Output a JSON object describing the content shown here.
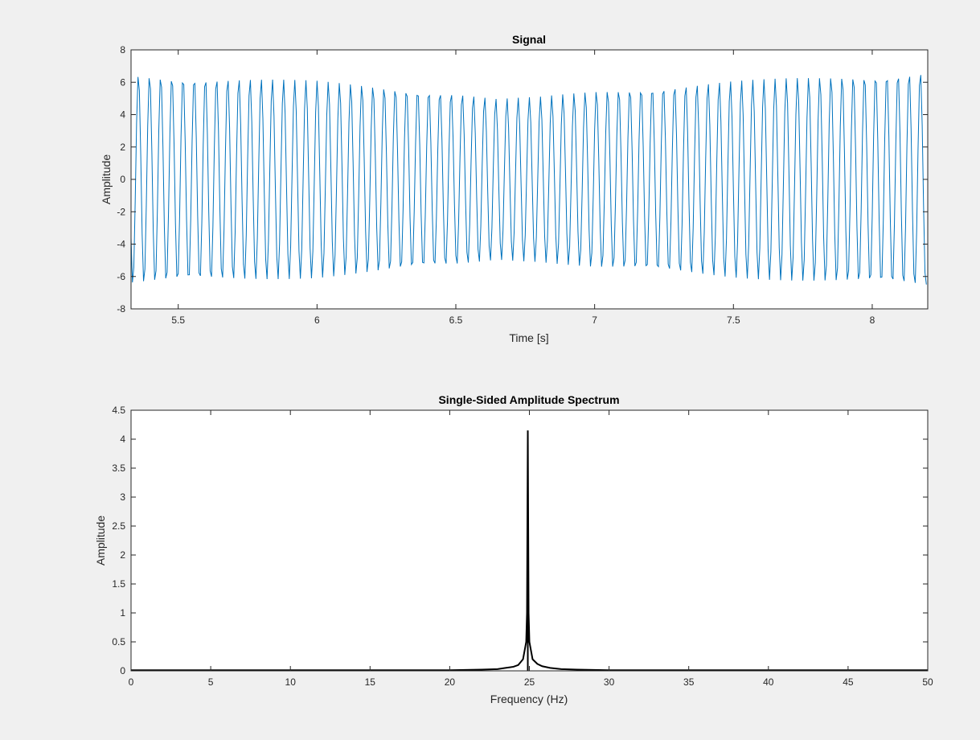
{
  "colors": {
    "figure_background": "#f0f0f0",
    "axes_background": "#ffffff",
    "axes_edge": "#262626",
    "signal_line": "#0072bd",
    "spectrum_line": "#000000"
  },
  "chart_data": [
    {
      "type": "line",
      "title": "Signal",
      "xlabel": "Time [s]",
      "ylabel": "Amplitude",
      "xlim": [
        5.33,
        8.2
      ],
      "ylim": [
        -8,
        8
      ],
      "xticks": [
        5.5,
        6,
        6.5,
        7,
        7.5,
        8
      ],
      "xtick_labels": [
        "5.5",
        "6",
        "6.5",
        "7",
        "7.5",
        "8"
      ],
      "yticks": [
        -8,
        -6,
        -4,
        -2,
        0,
        2,
        4,
        6,
        8
      ],
      "ytick_labels": [
        "-8",
        "-6",
        "-4",
        "-2",
        "0",
        "2",
        "4",
        "6",
        "8"
      ],
      "grid": false,
      "series": [
        {
          "color": "#0072bd",
          "carrier_frequency_hz": 25,
          "sample_rate_hz": 200,
          "envelope": {
            "x": [
              5.33,
              6.0,
              6.5,
              6.65,
              6.8,
              7.0,
              7.5,
              8.0,
              8.2
            ],
            "y": [
              6.5,
              6.1,
              5.4,
              5.0,
              5.1,
              5.5,
              6.1,
              6.5,
              6.7
            ]
          }
        }
      ]
    },
    {
      "type": "line",
      "title": "Single-Sided Amplitude Spectrum",
      "xlabel": "Frequency (Hz)",
      "ylabel": "Amplitude",
      "xlim": [
        0,
        50
      ],
      "ylim": [
        0,
        4.5
      ],
      "xticks": [
        0,
        5,
        10,
        15,
        20,
        25,
        30,
        35,
        40,
        45,
        50
      ],
      "xtick_labels": [
        "0",
        "5",
        "10",
        "15",
        "20",
        "25",
        "30",
        "35",
        "40",
        "45",
        "50"
      ],
      "yticks": [
        0,
        0.5,
        1,
        1.5,
        2,
        2.5,
        3,
        3.5,
        4,
        4.5
      ],
      "ytick_labels": [
        "0",
        "0.5",
        "1",
        "1.5",
        "2",
        "2.5",
        "3",
        "3.5",
        "4",
        "4.5"
      ],
      "grid": false,
      "series": [
        {
          "color": "#000000",
          "peak_frequency_hz": 24.9,
          "peak_amplitude": 4.15,
          "x": [
            0,
            10,
            20,
            22,
            23,
            23.5,
            24,
            24.3,
            24.6,
            24.8,
            24.85,
            24.9,
            24.95,
            25.0,
            25.2,
            25.5,
            25.8,
            26.3,
            27,
            28,
            30,
            40,
            50
          ],
          "y": [
            0.01,
            0.01,
            0.01,
            0.02,
            0.03,
            0.05,
            0.07,
            0.1,
            0.2,
            0.5,
            1.0,
            4.15,
            1.0,
            0.5,
            0.2,
            0.12,
            0.08,
            0.05,
            0.03,
            0.02,
            0.01,
            0.01,
            0.01
          ]
        }
      ]
    }
  ]
}
